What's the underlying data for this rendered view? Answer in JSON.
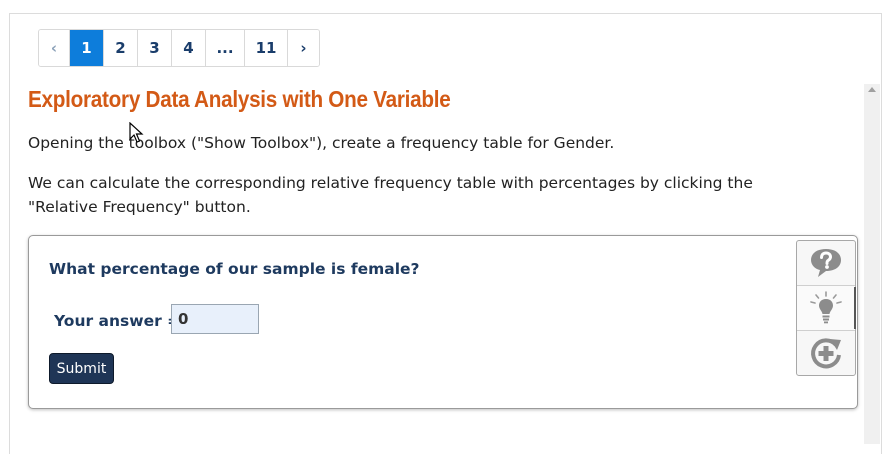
{
  "pagination": {
    "prev": "‹",
    "pages": [
      "1",
      "2",
      "3",
      "4",
      "...",
      "11"
    ],
    "active_index": 0,
    "next": "›"
  },
  "lesson": {
    "title": "Exploratory Data Analysis with One Variable",
    "paragraph1": "Opening the toolbox (\"Show Toolbox\"), create a frequency table for Gender.",
    "paragraph2": "We can calculate the corresponding relative frequency table with percentages by clicking the \"Relative Frequency\" button."
  },
  "question": {
    "prompt": "What percentage of our sample is female?",
    "answer_label": "Your answer =",
    "answer_value": "0",
    "submit_label": "Submit"
  },
  "tools": [
    "help-icon",
    "hint-lightbulb-icon",
    "retry-plus-icon"
  ]
}
